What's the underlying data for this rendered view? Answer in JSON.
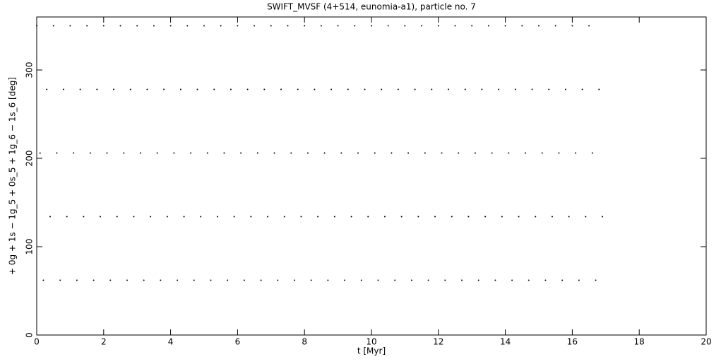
{
  "chart_data": {
    "type": "scatter",
    "title": "SWIFT_MVSF (4+514, eunomia-a1), particle no. 7",
    "x_label": "t [Myr]",
    "y_label": "+ 0g + 1s − 1g_5 + 0s_5 + 1g_6 − 1s_6 [deg]",
    "xlim": [
      0,
      20
    ],
    "ylim": [
      0,
      360
    ],
    "xticks": [
      0,
      2,
      4,
      6,
      8,
      10,
      12,
      14,
      16,
      18,
      20
    ],
    "yticks": [
      0,
      100,
      200,
      300
    ],
    "color": "#000000",
    "series": [
      {
        "x": [
          0,
          0.1,
          0.2,
          0.3,
          0.4,
          0.5,
          0.6,
          0.7,
          0.8,
          0.9,
          1,
          1.1,
          1.2,
          1.3,
          1.4,
          1.5,
          1.6,
          1.7,
          1.8,
          1.9,
          2,
          2.1,
          2.2,
          2.3,
          2.4,
          2.5,
          2.6,
          2.7,
          2.8,
          2.9,
          3,
          3.1,
          3.2,
          3.3,
          3.4,
          3.5,
          3.6,
          3.7,
          3.8,
          3.9,
          4,
          4.1,
          4.2,
          4.3,
          4.4,
          4.5,
          4.6,
          4.7,
          4.8,
          4.9,
          5,
          5.1,
          5.2,
          5.3,
          5.4,
          5.5,
          5.6,
          5.7,
          5.8,
          5.9,
          6,
          6.1,
          6.2,
          6.3,
          6.4,
          6.5,
          6.6,
          6.7,
          6.8,
          6.9,
          7,
          7.1,
          7.2,
          7.3,
          7.4,
          7.5,
          7.6,
          7.7,
          7.8,
          7.9,
          8,
          8.1,
          8.2,
          8.3,
          8.4,
          8.5,
          8.6,
          8.7,
          8.8,
          8.9,
          9,
          9.1,
          9.2,
          9.3,
          9.4,
          9.5,
          9.6,
          9.7,
          9.8,
          9.9,
          10,
          10.1,
          10.2,
          10.3,
          10.4,
          10.5,
          10.6,
          10.7,
          10.8,
          10.9,
          11,
          11.1,
          11.2,
          11.3,
          11.4,
          11.5,
          11.6,
          11.7,
          11.8,
          11.9,
          12,
          12.1,
          12.2,
          12.3,
          12.4,
          12.5,
          12.6,
          12.7,
          12.8,
          12.9,
          13,
          13.1,
          13.2,
          13.3,
          13.4,
          13.5,
          13.6,
          13.7,
          13.8,
          13.9,
          14,
          14.1,
          14.2,
          14.3,
          14.4,
          14.5,
          14.6,
          14.7,
          14.8,
          14.9,
          15,
          15.1,
          15.2,
          15.3,
          15.4,
          15.5,
          15.6,
          15.7,
          15.8,
          15.9,
          16,
          16.1,
          16.2,
          16.3,
          16.4,
          16.5,
          16.6,
          16.7,
          16.8,
          16.9
        ],
        "values": [
          350,
          206,
          62,
          278,
          134,
          350,
          206,
          62,
          278,
          134,
          350,
          206,
          62,
          278,
          134,
          350,
          206,
          62,
          278,
          134,
          350,
          206,
          62,
          278,
          134,
          350,
          206,
          62,
          278,
          134,
          350,
          206,
          62,
          278,
          134,
          350,
          206,
          62,
          278,
          134,
          350,
          206,
          62,
          278,
          134,
          350,
          206,
          62,
          278,
          134,
          350,
          206,
          62,
          278,
          134,
          350,
          206,
          62,
          278,
          134,
          350,
          206,
          62,
          278,
          134,
          350,
          206,
          62,
          278,
          134,
          350,
          206,
          62,
          278,
          134,
          350,
          206,
          62,
          278,
          134,
          350,
          206,
          62,
          278,
          134,
          350,
          206,
          62,
          278,
          134,
          350,
          206,
          62,
          278,
          134,
          350,
          206,
          62,
          278,
          134,
          350,
          206,
          62,
          278,
          134,
          350,
          206,
          62,
          278,
          134,
          350,
          206,
          62,
          278,
          134,
          350,
          206,
          62,
          278,
          134,
          350,
          206,
          62,
          278,
          134,
          350,
          206,
          62,
          278,
          134,
          350,
          206,
          62,
          278,
          134,
          350,
          206,
          62,
          278,
          134,
          350,
          206,
          62,
          278,
          134,
          350,
          206,
          62,
          278,
          134,
          350,
          206,
          62,
          278,
          134,
          350,
          206,
          62,
          278,
          134,
          350,
          206,
          62,
          278,
          134,
          350,
          206,
          62,
          278,
          134
        ]
      }
    ]
  }
}
